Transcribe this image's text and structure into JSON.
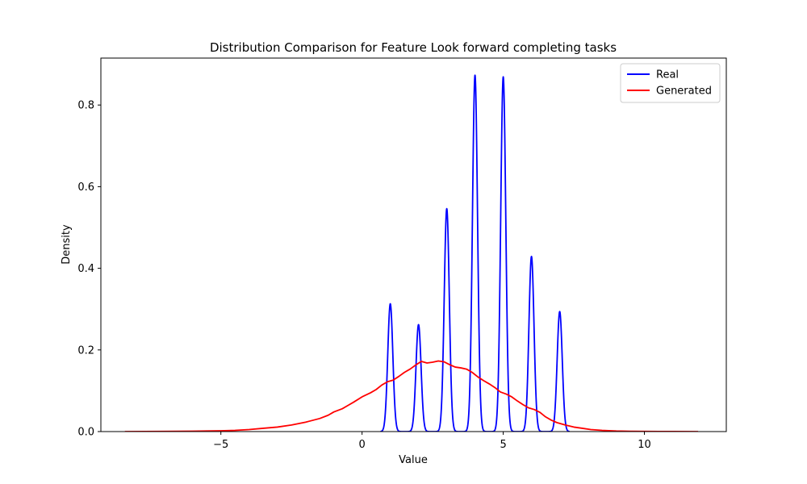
{
  "chart_data": {
    "type": "line",
    "title": "Distribution Comparison for Feature Look forward completing tasks",
    "xlabel": "Value",
    "ylabel": "Density",
    "xlim": [
      -9.25,
      12.9
    ],
    "ylim": [
      0,
      0.915
    ],
    "xticks": [
      -5,
      0,
      5,
      10
    ],
    "xtick_labels": [
      "−5",
      "0",
      "5",
      "10"
    ],
    "yticks": [
      0.0,
      0.2,
      0.4,
      0.6,
      0.8
    ],
    "ytick_labels": [
      "0.0",
      "0.2",
      "0.4",
      "0.6",
      "0.8"
    ],
    "grid": false,
    "legend_position": "top-right",
    "series": [
      {
        "name": "Real",
        "color": "#0000ff",
        "kind": "kde_peaks",
        "x_range": [
          0.65,
          7.35
        ],
        "peaks": [
          {
            "x": 1,
            "y": 0.313
          },
          {
            "x": 2,
            "y": 0.262
          },
          {
            "x": 3,
            "y": 0.546
          },
          {
            "x": 4,
            "y": 0.873
          },
          {
            "x": 5,
            "y": 0.869
          },
          {
            "x": 6,
            "y": 0.429
          },
          {
            "x": 7,
            "y": 0.294
          }
        ],
        "peak_sigma": 0.09
      },
      {
        "name": "Generated",
        "color": "#ff0000",
        "kind": "points",
        "x": [
          -8.4,
          -7,
          -6,
          -5,
          -4.5,
          -4,
          -3.5,
          -3,
          -2.5,
          -2,
          -1.5,
          -1.2,
          -1,
          -0.7,
          -0.5,
          -0.3,
          0,
          0.3,
          0.5,
          0.7,
          0.9,
          1.1,
          1.3,
          1.5,
          1.7,
          1.9,
          2.1,
          2.3,
          2.5,
          2.7,
          2.9,
          3.1,
          3.3,
          3.5,
          3.7,
          3.9,
          4.1,
          4.3,
          4.5,
          4.7,
          4.9,
          5.1,
          5.3,
          5.5,
          5.7,
          5.9,
          6.1,
          6.3,
          6.5,
          6.7,
          6.9,
          7.2,
          7.5,
          7.8,
          8.1,
          8.5,
          9,
          9.5,
          10,
          10.5,
          11,
          11.9
        ],
        "y": [
          0,
          0.0005,
          0.001,
          0.002,
          0.003,
          0.005,
          0.008,
          0.011,
          0.016,
          0.023,
          0.032,
          0.04,
          0.048,
          0.056,
          0.064,
          0.072,
          0.085,
          0.095,
          0.103,
          0.114,
          0.122,
          0.126,
          0.135,
          0.145,
          0.153,
          0.163,
          0.172,
          0.168,
          0.17,
          0.173,
          0.171,
          0.164,
          0.158,
          0.156,
          0.153,
          0.145,
          0.134,
          0.125,
          0.117,
          0.108,
          0.097,
          0.092,
          0.085,
          0.075,
          0.066,
          0.058,
          0.054,
          0.047,
          0.036,
          0.028,
          0.022,
          0.016,
          0.011,
          0.008,
          0.005,
          0.003,
          0.0015,
          0.0008,
          0.0004,
          0.0002,
          0.0001,
          0
        ]
      }
    ]
  }
}
